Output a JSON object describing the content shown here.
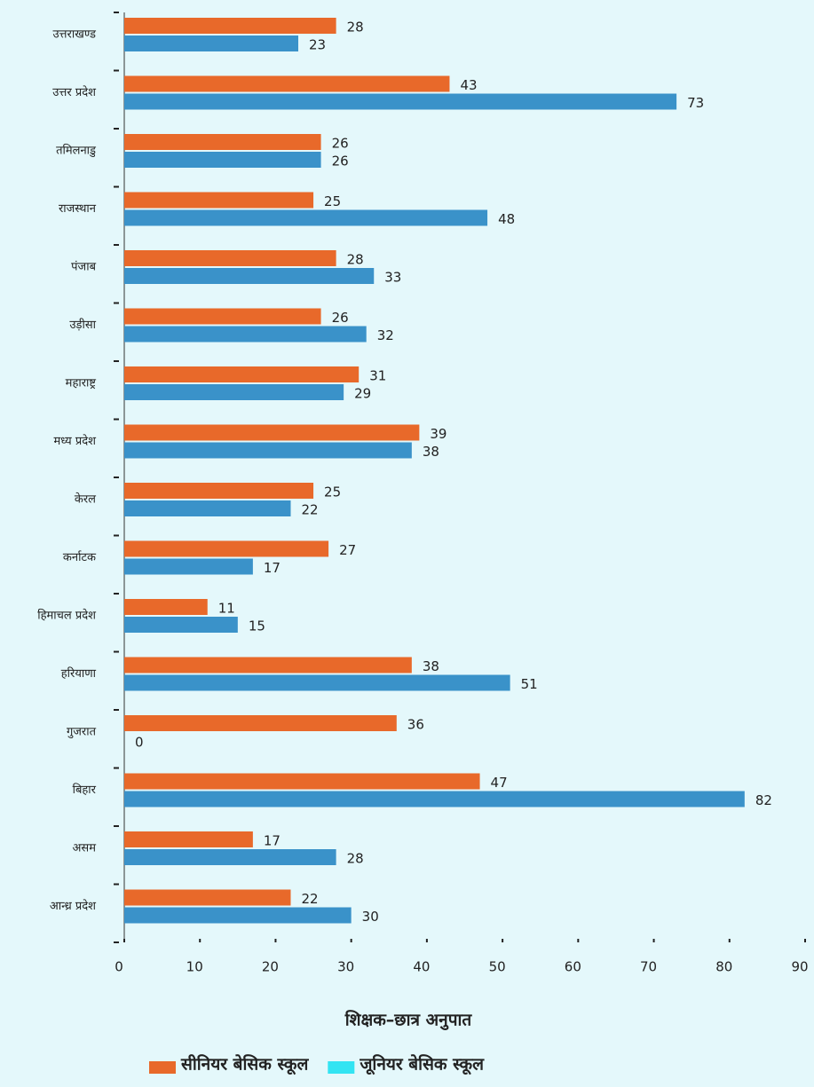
{
  "chart_data": {
    "type": "barh",
    "categories": [
      "उत्तराखण्ड",
      "उत्तर प्रदेश",
      "तमिलनाडु",
      "राजस्थान",
      "पंजाब",
      "उड़ीसा",
      "महाराष्ट्र",
      "मध्य प्रदेश",
      "केरल",
      "कर्नाटक",
      "हिमाचल प्रदेश",
      "हरियाणा",
      "गुजरात",
      "बिहार",
      "असम",
      "आन्ध्र प्रदेश"
    ],
    "series": [
      {
        "name": "सीनियर बेसिक स्कूल",
        "color": "#e8692a",
        "values": [
          28,
          43,
          26,
          25,
          28,
          26,
          31,
          39,
          25,
          27,
          11,
          38,
          36,
          47,
          17,
          22
        ]
      },
      {
        "name": "जूनियर बेसिक स्कूल",
        "color": "#3a92c9",
        "legend_color": "#33e4f2",
        "values": [
          23,
          73,
          26,
          48,
          33,
          32,
          29,
          38,
          22,
          17,
          15,
          51,
          0,
          82,
          28,
          30
        ]
      }
    ],
    "x_label": "शिक्षक–छात्र अनुपात",
    "xlim": [
      0,
      90
    ],
    "xticks": [
      0,
      10,
      20,
      30,
      40,
      50,
      60,
      70,
      80,
      90
    ]
  }
}
